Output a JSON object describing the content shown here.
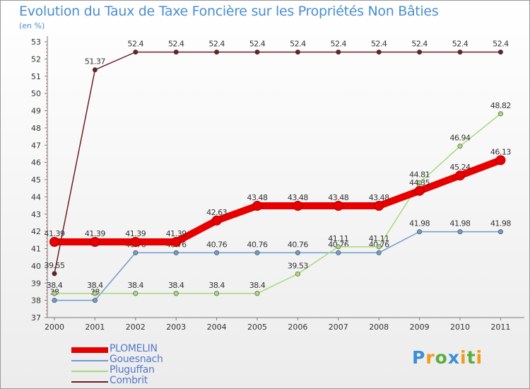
{
  "chart_data": {
    "type": "line",
    "title": "Evolution du Taux de Taxe Foncière sur les Propriétés Non Bâties",
    "subtitle": "(en %)",
    "x": [
      "2000",
      "2001",
      "2002",
      "2003",
      "2004",
      "2005",
      "2006",
      "2007",
      "2008",
      "2009",
      "2010",
      "2011"
    ],
    "ylim": [
      37,
      53
    ],
    "yticks": [
      "37",
      "38",
      "39",
      "40",
      "41",
      "42",
      "43",
      "44",
      "45",
      "46",
      "47",
      "48",
      "49",
      "50",
      "51",
      "52",
      "53"
    ],
    "grid": false,
    "legend_position": "bottom-left",
    "series": [
      {
        "name": "Combrit",
        "color": "#6b1f26",
        "values": [
          39.55,
          51.37,
          52.4,
          52.4,
          52.4,
          52.4,
          52.4,
          52.4,
          52.4,
          52.4,
          52.4,
          52.4
        ],
        "labels": [
          "39.55",
          "51.37",
          "52.4",
          "52.4",
          "52.4",
          "52.4",
          "52.4",
          "52.4",
          "52.4",
          "52.4",
          "52.4",
          "52.4"
        ]
      },
      {
        "name": "Gouesnach",
        "color": "#6f9ccc",
        "values": [
          38,
          38,
          40.76,
          40.76,
          40.76,
          40.76,
          40.76,
          40.76,
          40.76,
          41.98,
          41.98,
          41.98
        ],
        "labels": [
          "38",
          "38",
          "40.76",
          "40.76",
          "40.76",
          "40.76",
          "40.76",
          "40.76",
          "40.76",
          "41.98",
          "41.98",
          "41.98"
        ]
      },
      {
        "name": "Pluguffan",
        "color": "#a8da7a",
        "values": [
          38.4,
          38.4,
          38.4,
          38.4,
          38.4,
          38.4,
          39.53,
          41.11,
          41.11,
          44.81,
          46.94,
          48.82
        ],
        "labels": [
          "38.4",
          "38.4",
          "38.4",
          "38.4",
          "38.4",
          "38.4",
          "39.53",
          "41.11",
          "41.11",
          "44.81",
          "46.94",
          "48.82"
        ]
      },
      {
        "name": "PLOMELIN",
        "color": "#e60000",
        "values": [
          41.39,
          41.39,
          41.39,
          41.39,
          42.63,
          43.48,
          43.48,
          43.48,
          43.48,
          44.35,
          45.24,
          46.13
        ],
        "labels": [
          "41.39",
          "41.39",
          "41.39",
          "41.39",
          "42.63",
          "43.48",
          "43.48",
          "43.48",
          "43.48",
          "44.35",
          "45.24",
          "46.13"
        ]
      }
    ]
  },
  "legend": [
    {
      "name": "PLOMELIN",
      "color": "#e60000",
      "thick": true
    },
    {
      "name": "Gouesnach",
      "color": "#6f9ccc",
      "thick": false
    },
    {
      "name": "Pluguffan",
      "color": "#a8da7a",
      "thick": false
    },
    {
      "name": "Combrit",
      "color": "#6b1f26",
      "thick": false
    }
  ],
  "logo": {
    "text": "Proxiti",
    "letters": [
      {
        "ch": "P",
        "color": "#3a8fd8"
      },
      {
        "ch": "r",
        "color": "#f29a1a"
      },
      {
        "ch": "o",
        "color": "#5aae3c"
      },
      {
        "ch": "x",
        "color": "#3a8fd8"
      },
      {
        "ch": "i",
        "color": "#f29a1a"
      },
      {
        "ch": "t",
        "color": "#5aae3c"
      },
      {
        "ch": "i",
        "color": "#f29a1a"
      }
    ]
  }
}
